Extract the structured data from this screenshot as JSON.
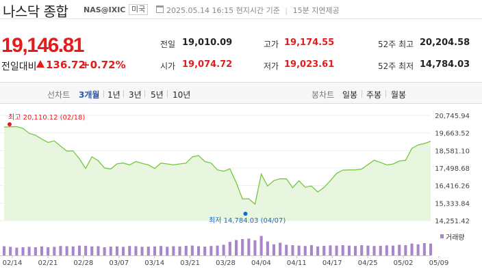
{
  "header": {
    "title": "나스닥 종합",
    "code": "NAS@IXIC",
    "country": "미국",
    "timestamp": "2025.05.14 16:15 현지시간 기준",
    "delay": "15분 지연제공",
    "icon": "calendar-icon"
  },
  "quote": {
    "price": "19,146.81",
    "change_label": "전일대비",
    "change": "136.72",
    "change_rate": "+0.72%",
    "direction": "up",
    "prev_close_label": "전일",
    "prev_close": "19,010.09",
    "open_label": "시가",
    "open": "19,074.72",
    "high_label": "고가",
    "high": "19,174.55",
    "low_label": "저가",
    "low": "19,023.61",
    "wk52_high_label": "52주 최고",
    "wk52_high": "20,204.58",
    "wk52_low_label": "52주 최저",
    "wk52_low": "14,784.03"
  },
  "tabs": {
    "line_header": "선차트",
    "periods": [
      "3개월",
      "1년",
      "3년",
      "5년",
      "10년"
    ],
    "active_period": "3개월",
    "candle_header": "봉차트",
    "candles": [
      "일봉",
      "주봉",
      "월봉"
    ]
  },
  "colors": {
    "up": "#e61a1a",
    "line": "#73c73b",
    "fill": "#e8f6df",
    "volume": "#a985c9",
    "active": "#2b55a6"
  },
  "chart_data": {
    "type": "area",
    "y_ticks": [
      "20,745.94",
      "19,663.52",
      "18,581.10",
      "17,498.68",
      "16,416.26",
      "15,333.84",
      "14,251.42"
    ],
    "ylim": [
      14251.42,
      20745.94
    ],
    "x_ticks": [
      "02/14",
      "02/21",
      "02/28",
      "03/07",
      "03/14",
      "03/21",
      "03/28",
      "04/04",
      "04/11",
      "04/17",
      "04/25",
      "05/02",
      "05/09"
    ],
    "max_annotation": "최고 20,110.12 (02/18)",
    "min_annotation": "최저 14,784.03 (04/07)",
    "volume_label": "거래량",
    "series": [
      {
        "values": [
          20026,
          20041,
          20056,
          19946,
          19643,
          19524,
          19286,
          19075,
          19171,
          18848,
          18544,
          18552,
          18069,
          17469,
          18196,
          17950,
          17504,
          17436,
          17754,
          17808,
          17692,
          17899,
          17782,
          17691,
          17468,
          17804,
          17750,
          17691,
          17750,
          17800,
          18188,
          18271,
          17899,
          17804,
          17384,
          17300,
          17450,
          16600,
          15588,
          15603,
          15268,
          17124,
          16387,
          16724,
          16832,
          16831,
          16286,
          16708,
          16313,
          16385,
          16017,
          16301,
          16708,
          17166,
          17366,
          17382,
          17383,
          17430,
          17710,
          17978,
          17844,
          17690,
          17742,
          17928,
          17977,
          18708,
          18925,
          19010,
          19147
        ]
      }
    ],
    "volume": [
      0.45,
      0.42,
      0.38,
      0.4,
      0.42,
      0.4,
      0.44,
      0.4,
      0.42,
      0.46,
      0.45,
      0.44,
      0.48,
      0.47,
      0.44,
      0.45,
      0.4,
      0.43,
      0.44,
      0.42,
      0.46,
      0.45,
      0.42,
      0.43,
      0.44,
      0.46,
      0.42,
      0.45,
      0.44,
      0.47,
      0.48,
      0.45,
      0.43,
      0.46,
      0.48,
      0.52,
      0.66,
      0.75,
      0.8,
      0.82,
      0.74,
      0.95,
      0.68,
      0.54,
      0.62,
      0.52,
      0.5,
      0.48,
      0.46,
      0.5,
      0.44,
      0.47,
      0.49,
      0.48,
      0.5,
      0.48,
      0.46,
      0.5,
      0.48,
      0.46,
      0.47,
      0.49,
      0.48,
      0.52,
      0.5,
      0.58,
      0.54,
      0.6,
      0.58
    ]
  }
}
